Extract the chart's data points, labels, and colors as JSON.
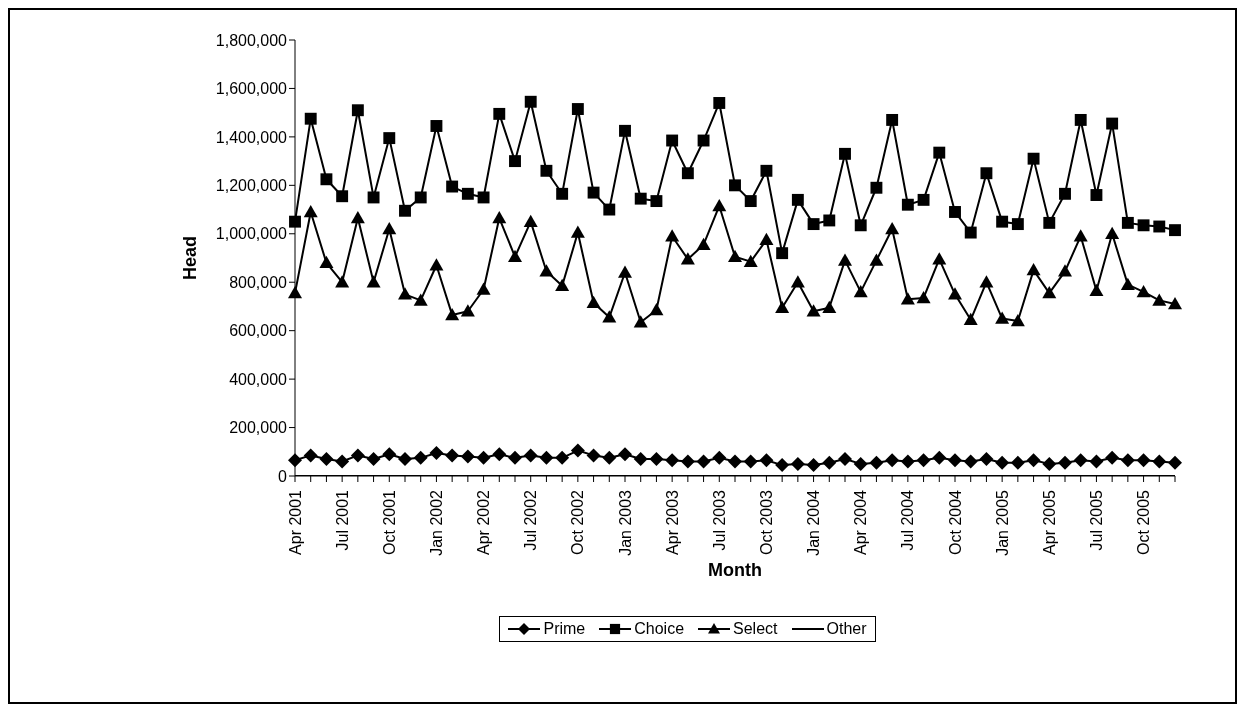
{
  "chart_data": {
    "type": "line",
    "xlabel": "Month",
    "ylabel": "Head",
    "categories": [
      "Apr 2001",
      null,
      null,
      "Jul 2001",
      null,
      null,
      "Oct 2001",
      null,
      null,
      "Jan 2002",
      null,
      null,
      "Apr 2002",
      null,
      null,
      "Jul 2002",
      null,
      null,
      "Oct 2002",
      null,
      null,
      "Jan 2003",
      null,
      null,
      "Apr 2003",
      null,
      null,
      "Jul 2003",
      null,
      null,
      "Oct 2003",
      null,
      null,
      "Jan 2004",
      null,
      null,
      "Apr 2004",
      null,
      null,
      "Jul 2004",
      null,
      null,
      "Oct 2004",
      null,
      null,
      "Jan 2005",
      null,
      null,
      "Apr 2005",
      null,
      null,
      "Jul 2005",
      null,
      null,
      "Oct 2005",
      null,
      null
    ],
    "series": [
      {
        "name": "Prime",
        "color": "#000000",
        "marker": "diamond",
        "values": [
          65000,
          85000,
          70000,
          60000,
          85000,
          70000,
          90000,
          70000,
          75000,
          95000,
          85000,
          80000,
          75000,
          90000,
          75000,
          85000,
          75000,
          75000,
          105000,
          85000,
          75000,
          90000,
          70000,
          70000,
          65000,
          60000,
          60000,
          75000,
          60000,
          60000,
          65000,
          45000,
          50000,
          45000,
          55000,
          70000,
          50000,
          55000,
          65000,
          60000,
          65000,
          75000,
          65000,
          60000,
          70000,
          55000,
          55000,
          65000,
          50000,
          55000,
          65000,
          60000,
          75000,
          65000,
          65000,
          60000,
          55000
        ]
      },
      {
        "name": "Choice",
        "color": "#000000",
        "marker": "square",
        "values": [
          1050000,
          1475000,
          1225000,
          1155000,
          1510000,
          1150000,
          1395000,
          1095000,
          1150000,
          1445000,
          1195000,
          1165000,
          1150000,
          1495000,
          1300000,
          1545000,
          1260000,
          1165000,
          1515000,
          1170000,
          1100000,
          1425000,
          1145000,
          1135000,
          1385000,
          1250000,
          1385000,
          1540000,
          1200000,
          1135000,
          1260000,
          920000,
          1140000,
          1040000,
          1055000,
          1330000,
          1035000,
          1190000,
          1470000,
          1120000,
          1140000,
          1335000,
          1090000,
          1005000,
          1250000,
          1050000,
          1040000,
          1310000,
          1045000,
          1165000,
          1470000,
          1160000,
          1455000,
          1045000,
          1035000,
          1030000,
          1015000
        ]
      },
      {
        "name": "Select",
        "color": "#000000",
        "marker": "triangle",
        "values": [
          755000,
          1090000,
          880000,
          800000,
          1065000,
          800000,
          1020000,
          750000,
          725000,
          870000,
          665000,
          680000,
          770000,
          1065000,
          905000,
          1050000,
          845000,
          785000,
          1005000,
          715000,
          655000,
          840000,
          635000,
          685000,
          990000,
          895000,
          955000,
          1115000,
          905000,
          885000,
          975000,
          695000,
          800000,
          680000,
          695000,
          890000,
          760000,
          890000,
          1020000,
          730000,
          735000,
          895000,
          750000,
          645000,
          800000,
          650000,
          640000,
          850000,
          755000,
          845000,
          990000,
          765000,
          1000000,
          790000,
          760000,
          725000,
          710000
        ]
      },
      {
        "name": "Other",
        "color": "#000000",
        "marker": "none",
        "values": [
          0,
          0,
          0,
          0,
          0,
          0,
          0,
          0,
          0,
          0,
          0,
          0,
          0,
          0,
          0,
          0,
          0,
          0,
          0,
          0,
          0,
          0,
          0,
          0,
          0,
          0,
          0,
          0,
          0,
          0,
          0,
          0,
          0,
          0,
          0,
          0,
          0,
          0,
          0,
          0,
          0,
          0,
          0,
          0,
          0,
          0,
          0,
          0,
          0,
          0,
          0,
          0,
          0,
          0,
          0,
          0,
          0
        ]
      }
    ],
    "ylim": [
      0,
      1800000
    ],
    "yticks": [
      0,
      {
        "value": 200000,
        "label": "200,000"
      },
      {
        "value": 400000,
        "label": "400,000"
      },
      {
        "value": 600000,
        "label": "600,000"
      },
      {
        "value": 800000,
        "label": "800,000"
      },
      {
        "value": 1000000,
        "label": "1,000,000"
      },
      {
        "value": 1200000,
        "label": "1,200,000"
      },
      {
        "value": 1400000,
        "label": "1,400,000"
      },
      {
        "value": 1600000,
        "label": "1,600,000"
      },
      {
        "value": 1800000,
        "label": "1,800,000"
      }
    ],
    "grid": false,
    "legend": "bottom"
  }
}
